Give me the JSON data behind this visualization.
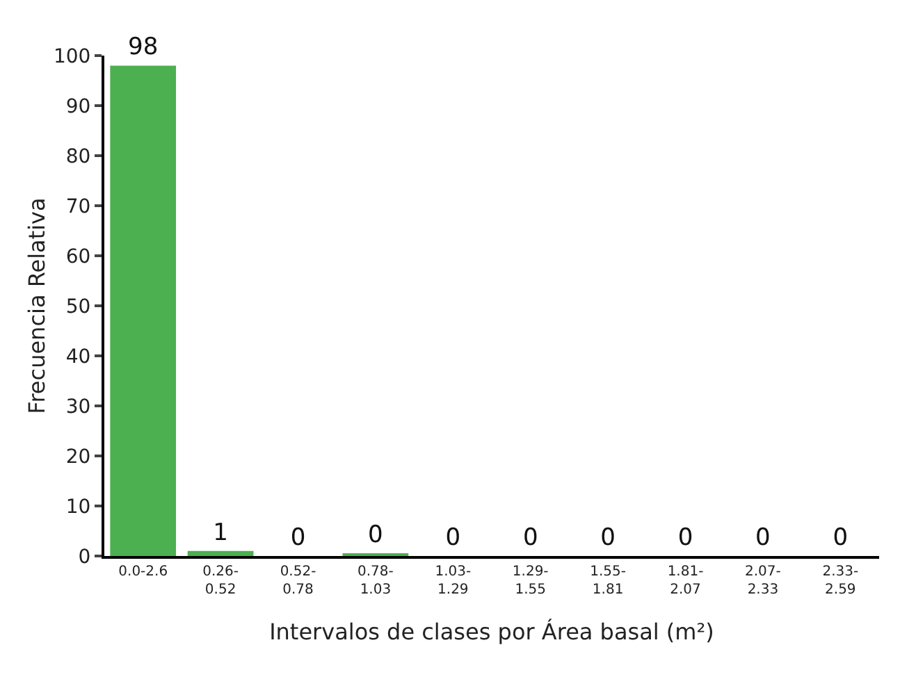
{
  "chart_data": {
    "type": "bar",
    "categories": [
      "0.0-2.6",
      "0.26-\n0.52",
      "0.52-\n0.78",
      "0.78-\n1.03",
      "1.03-\n1.29",
      "1.29-\n1.55",
      "1.55-\n1.81",
      "1.81-\n2.07",
      "2.07-\n2.33",
      "2.33-\n2.59"
    ],
    "values": [
      98,
      1,
      0,
      0.4,
      0,
      0,
      0,
      0,
      0,
      0
    ],
    "value_labels": [
      "98",
      "1",
      "0",
      "0",
      "0",
      "0",
      "0",
      "0",
      "0",
      "0"
    ],
    "color": "#4caf50",
    "xlabel": "Intervalos de clases por Área basal (m²)",
    "ylabel": "Frecuencia Relativa",
    "ylim": [
      0,
      100
    ],
    "yticks": [
      0,
      10,
      20,
      30,
      40,
      50,
      60,
      70,
      80,
      90,
      100
    ],
    "grid": false
  }
}
